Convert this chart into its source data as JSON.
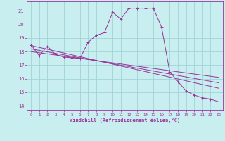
{
  "xlabel": "Windchill (Refroidissement éolien,°C)",
  "xlim": [
    -0.5,
    23.5
  ],
  "ylim": [
    13.7,
    21.7
  ],
  "yticks": [
    14,
    15,
    16,
    17,
    18,
    19,
    20,
    21
  ],
  "xticks": [
    0,
    1,
    2,
    3,
    4,
    5,
    6,
    7,
    8,
    9,
    10,
    11,
    12,
    13,
    14,
    15,
    16,
    17,
    18,
    19,
    20,
    21,
    22,
    23
  ],
  "bg_color": "#c8eef0",
  "grid_color": "#a0d4d8",
  "line_color": "#993399",
  "series": {
    "main": {
      "x": [
        0,
        1,
        2,
        3,
        4,
        5,
        6,
        7,
        8,
        9,
        10,
        11,
        12,
        13,
        14,
        15,
        16,
        17,
        18,
        19,
        20,
        21,
        22,
        23
      ],
      "y": [
        18.5,
        17.7,
        18.4,
        17.8,
        17.6,
        17.55,
        17.5,
        18.7,
        19.2,
        19.4,
        20.9,
        20.4,
        21.2,
        21.2,
        21.2,
        21.2,
        19.8,
        16.5,
        15.8,
        15.1,
        14.8,
        14.6,
        14.5,
        14.3
      ]
    },
    "line1": {
      "x": [
        0,
        23
      ],
      "y": [
        18.45,
        15.3
      ]
    },
    "line2": {
      "x": [
        0,
        23
      ],
      "y": [
        18.2,
        15.7
      ]
    },
    "line3": {
      "x": [
        0,
        23
      ],
      "y": [
        18.0,
        16.1
      ]
    }
  }
}
